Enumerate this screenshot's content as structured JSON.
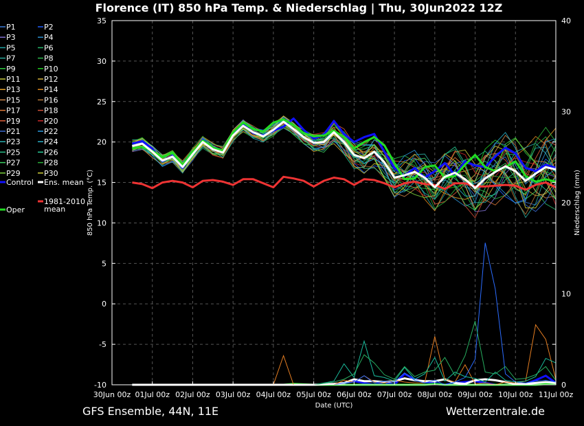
{
  "header": {
    "title": "Florence  (IT)  850 hPa Temp. & Niederschlag | Thu, 30Jun2022 12Z"
  },
  "footer": {
    "left": "GFS Ensemble, 44N, 11E",
    "right": "Wetterzentrale.de"
  },
  "chart_data": {
    "type": "line",
    "title": "Florence  (IT)  850 hPa Temp. & Niederschlag | Thu, 30Jun2022 12Z",
    "xlabel": "Date (UTC)",
    "ylabel": "850 hPa Temp. (°C)",
    "y2label": "Niederschlag (mm)",
    "ylim": [
      -10,
      35
    ],
    "y2lim": [
      0,
      40
    ],
    "yticks": [
      -10,
      -5,
      0,
      5,
      10,
      15,
      20,
      25,
      30,
      35
    ],
    "y2ticks": [
      0,
      10,
      20,
      30,
      40
    ],
    "x": [
      "30Jun 00z",
      "01Jul 00z",
      "02Jul 00z",
      "03Jul 00z",
      "04Jul 00z",
      "05Jul 00z",
      "06Jul 00z",
      "07Jul 00z",
      "08Jul 00z",
      "09Jul 00z",
      "10Jul 00z",
      "11Jul 00z"
    ],
    "x_hours": [
      0,
      24,
      48,
      72,
      96,
      120,
      144,
      168,
      192,
      216,
      240,
      264
    ],
    "grid": true,
    "legend_position": "left",
    "temp_hours": [
      12,
      18,
      24,
      30,
      36,
      42,
      48,
      54,
      60,
      66,
      72,
      78,
      84,
      90,
      96,
      102,
      108,
      114,
      120,
      126,
      132,
      138,
      144,
      150,
      156,
      162,
      168,
      174,
      180,
      186,
      192,
      198,
      204,
      210,
      216,
      222,
      228,
      234,
      240,
      246,
      252,
      258,
      264
    ],
    "temp_series": [
      {
        "name": "Control",
        "color": "#1010ff",
        "width": 3,
        "values": [
          19.8,
          20.1,
          19.2,
          17.6,
          18.3,
          16.8,
          18.6,
          20.3,
          19.2,
          18.8,
          21.0,
          22.2,
          21.1,
          20.8,
          21.4,
          21.9,
          22.9,
          21.5,
          20.4,
          20.9,
          22.6,
          21.0,
          20.0,
          20.6,
          21.0,
          18.8,
          16.8,
          15.8,
          16.8,
          15.6,
          16.4,
          17.4,
          15.9,
          17.6,
          17.1,
          16.9,
          18.2,
          19.3,
          18.6,
          16.8,
          16.4,
          17.2,
          16.8
        ]
      },
      {
        "name": "Oper",
        "color": "#22dd22",
        "width": 3,
        "values": [
          19.2,
          19.4,
          18.9,
          18.1,
          18.7,
          17.1,
          18.8,
          20.2,
          19.3,
          18.9,
          21.2,
          22.4,
          21.6,
          21.3,
          22.4,
          22.8,
          22.1,
          21.1,
          20.7,
          20.8,
          21.4,
          20.6,
          19.2,
          20.0,
          20.6,
          19.6,
          17.4,
          15.4,
          15.5,
          16.9,
          17.1,
          15.6,
          15.8,
          17.2,
          18.4,
          16.9,
          16.4,
          16.9,
          17.6,
          15.8,
          15.1,
          15.4,
          15.1
        ]
      },
      {
        "name": "Ens. mean",
        "color": "#ffffff",
        "width": 3,
        "values": [
          19.5,
          19.8,
          18.8,
          17.7,
          18.2,
          16.9,
          18.5,
          20.0,
          19.1,
          18.7,
          20.8,
          22.0,
          21.2,
          20.7,
          21.5,
          22.5,
          21.6,
          20.6,
          19.9,
          20.0,
          21.2,
          20.0,
          18.4,
          18.0,
          18.8,
          17.5,
          15.6,
          15.9,
          16.3,
          15.6,
          14.4,
          15.7,
          16.2,
          15.4,
          14.3,
          15.5,
          16.3,
          17.0,
          16.4,
          15.2,
          16.1,
          16.9,
          16.6
        ]
      },
      {
        "name": "1981-2010 mean",
        "color": "#ee3333",
        "width": 3,
        "values": [
          15.0,
          14.8,
          14.3,
          15.0,
          15.2,
          15.0,
          14.4,
          15.2,
          15.3,
          15.1,
          14.7,
          15.4,
          15.4,
          14.9,
          14.4,
          15.7,
          15.5,
          15.2,
          14.5,
          15.2,
          15.6,
          15.4,
          14.7,
          15.4,
          15.3,
          14.9,
          14.4,
          14.9,
          15.1,
          14.8,
          14.7,
          14.2,
          14.9,
          14.9,
          14.5,
          14.5,
          14.6,
          14.7,
          14.6,
          14.1,
          14.7,
          15.0,
          14.4
        ]
      }
    ],
    "precip_hours": [
      12,
      24,
      36,
      48,
      60,
      72,
      84,
      96,
      102,
      108,
      120,
      132,
      138,
      144,
      150,
      156,
      162,
      168,
      174,
      180,
      186,
      192,
      198,
      204,
      210,
      216,
      222,
      228,
      234,
      240,
      246,
      252,
      258,
      264
    ],
    "precip_series": [
      {
        "name": "Control",
        "color": "#1010ff",
        "width": 3,
        "values": [
          0,
          0,
          0,
          0,
          0,
          0,
          0,
          0,
          0,
          0,
          0,
          0,
          0.2,
          0.4,
          0.2,
          0,
          0.3,
          0,
          1.2,
          0.6,
          0.3,
          0.2,
          0,
          0.2,
          0.3,
          0.4,
          0.2,
          0,
          0,
          0,
          0.1,
          0.5,
          1.0,
          0.2
        ]
      },
      {
        "name": "Oper",
        "color": "#22dd22",
        "width": 3,
        "values": [
          0,
          0,
          0,
          0,
          0,
          0,
          0,
          0,
          0,
          0.1,
          0,
          0,
          0,
          0,
          0,
          0,
          0,
          0,
          0,
          0,
          0,
          0.1,
          0,
          0,
          0,
          0,
          0,
          0,
          0,
          0,
          0,
          0,
          0.1,
          0.1
        ]
      },
      {
        "name": "Ens. mean",
        "color": "#ffffff",
        "width": 3,
        "values": [
          0,
          0,
          0,
          0,
          0,
          0,
          0,
          0,
          0,
          0,
          0,
          0.1,
          0.2,
          0.6,
          0.4,
          0.4,
          0.3,
          0.4,
          0.7,
          0.5,
          0.4,
          0.4,
          0.6,
          0.2,
          0.1,
          0.5,
          0.6,
          0.5,
          0.3,
          0.1,
          0.1,
          0.2,
          0.3,
          0.2
        ]
      },
      {
        "name": "P13",
        "color": "#e67e22",
        "width": 1,
        "values": [
          0,
          0,
          0,
          0,
          0,
          0,
          0,
          0,
          3.2,
          0,
          0,
          0,
          0.5,
          0.3,
          1.0,
          0.3,
          0.2,
          0.5,
          0.3,
          0.2,
          0.2,
          5.3,
          0.6,
          0.3,
          2.2,
          0.1,
          0.2,
          0,
          0.3,
          0.2,
          0.4,
          6.6,
          5.0,
          0.6
        ]
      },
      {
        "name": "P4",
        "color": "#2b6cff",
        "width": 1,
        "values": [
          0,
          0,
          0,
          0,
          0,
          0,
          0,
          0,
          0,
          0,
          0,
          0,
          0.2,
          0.3,
          1.0,
          0.2,
          0.4,
          0.3,
          1.3,
          0.5,
          0.2,
          0.5,
          0,
          0.3,
          0.8,
          2.8,
          15.6,
          10.5,
          1.2,
          0.3,
          0.2,
          0.4,
          0.5,
          0.3
        ]
      },
      {
        "name": "P23",
        "color": "#1abc9c",
        "width": 1,
        "values": [
          0,
          0,
          0,
          0,
          0,
          0,
          0,
          0,
          0,
          0,
          0,
          0.4,
          2.3,
          0.8,
          4.8,
          1.0,
          0.8,
          0.4,
          1.9,
          0.6,
          1.2,
          3.0,
          0.4,
          1.4,
          0.9,
          0.7,
          0.3,
          1.4,
          0.5,
          0.3,
          0.4,
          0.9,
          2.9,
          2.4
        ]
      },
      {
        "name": "P28",
        "color": "#27ae60",
        "width": 1,
        "values": [
          0,
          0,
          0,
          0,
          0,
          0,
          0,
          0,
          0,
          0,
          0,
          0.3,
          0.6,
          1.2,
          3.3,
          2.4,
          1.1,
          0.6,
          2.0,
          0.9,
          1.4,
          1.6,
          3.0,
          1.0,
          3.2,
          7.0,
          1.4,
          1.2,
          2.0,
          0.6,
          0.7,
          1.1,
          2.0,
          0.5
        ]
      }
    ],
    "legend": [
      "P1",
      "P2",
      "P3",
      "P4",
      "P5",
      "P6",
      "P7",
      "P8",
      "P9",
      "P10",
      "P11",
      "P12",
      "P13",
      "P14",
      "P15",
      "P16",
      "P17",
      "P18",
      "P19",
      "P20",
      "P21",
      "P22",
      "P23",
      "P24",
      "P25",
      "P26",
      "P27",
      "P28",
      "P29",
      "P30",
      "Control",
      "Ens. mean",
      "1981-2010 mean",
      "Oper"
    ],
    "legend_lines": {
      "1981-2010 mean": [
        "1981-2010",
        "mean"
      ]
    },
    "legend_colors": {
      "P1": "#3b7bd9",
      "P2": "#1f5fff",
      "P3": "#7f6fd0",
      "P4": "#2b8fd0",
      "P5": "#1fa3a3",
      "P6": "#26b56a",
      "P7": "#2aa899",
      "P8": "#2db84d",
      "P9": "#2ecc40",
      "P10": "#1fcc1f",
      "P11": "#c4c83a",
      "P12": "#d6b43a",
      "P13": "#e6a52a",
      "P14": "#e08a1f",
      "P15": "#d0884a",
      "P16": "#b8783a",
      "P17": "#e07a3a",
      "P18": "#d0503a",
      "P19": "#e0603a",
      "P20": "#cc2a2a",
      "P21": "#3a6ad0",
      "P22": "#2a9ae0",
      "P23": "#2ab0b0",
      "P24": "#2ab0c8",
      "P25": "#2ac08a",
      "P26": "#2ad09a",
      "P27": "#3ad060",
      "P28": "#2ab03a",
      "P29": "#7ad03a",
      "P30": "#d0d03a",
      "Control": "#1010ff",
      "Ens. mean": "#ffffff",
      "1981-2010 mean": "#ee3333",
      "Oper": "#22dd22"
    },
    "grid_color": "#555555"
  }
}
